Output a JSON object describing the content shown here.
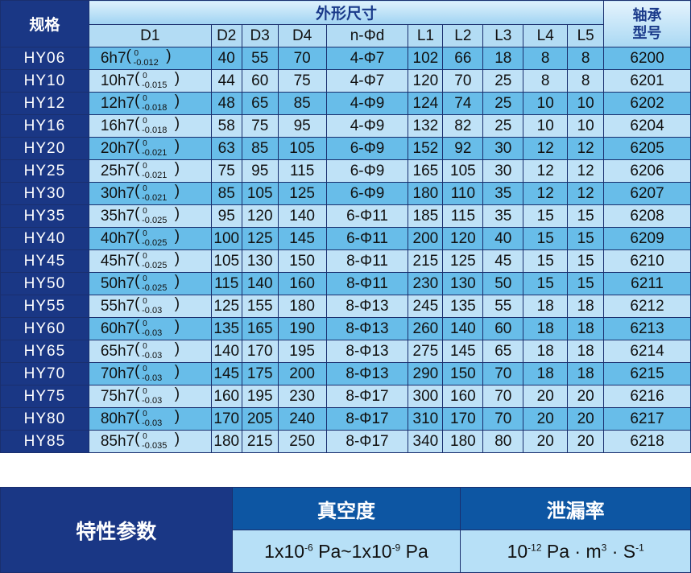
{
  "spec_table": {
    "model_header": "规格",
    "dimensions_header": "外形尺寸",
    "bearing_header_line1": "轴承",
    "bearing_header_line2": "型号",
    "columns": [
      "D1",
      "D2",
      "D3",
      "D4",
      "n-Φd",
      "L1",
      "L2",
      "L3",
      "L4",
      "L5"
    ],
    "rows": [
      {
        "model": "HY06",
        "d1": "6h7",
        "upper": "0",
        "lower": "-0.012",
        "d2": "40",
        "d3": "55",
        "d4": "70",
        "nd": "4-Φ7",
        "l1": "102",
        "l2": "66",
        "l3": "18",
        "l4": "8",
        "l5": "8",
        "bearing": "6200"
      },
      {
        "model": "HY10",
        "d1": "10h7",
        "upper": "0",
        "lower": "-0.015",
        "d2": "44",
        "d3": "60",
        "d4": "75",
        "nd": "4-Φ7",
        "l1": "120",
        "l2": "70",
        "l3": "25",
        "l4": "8",
        "l5": "8",
        "bearing": "6201"
      },
      {
        "model": "HY12",
        "d1": "12h7",
        "upper": "0",
        "lower": "-0.018",
        "d2": "48",
        "d3": "65",
        "d4": "85",
        "nd": "4-Φ9",
        "l1": "124",
        "l2": "74",
        "l3": "25",
        "l4": "10",
        "l5": "10",
        "bearing": "6202"
      },
      {
        "model": "HY16",
        "d1": "16h7",
        "upper": "0",
        "lower": "-0.018",
        "d2": "58",
        "d3": "75",
        "d4": "95",
        "nd": "4-Φ9",
        "l1": "132",
        "l2": "82",
        "l3": "25",
        "l4": "10",
        "l5": "10",
        "bearing": "6204"
      },
      {
        "model": "HY20",
        "d1": "20h7",
        "upper": "0",
        "lower": "-0.021",
        "d2": "63",
        "d3": "85",
        "d4": "105",
        "nd": "6-Φ9",
        "l1": "152",
        "l2": "92",
        "l3": "30",
        "l4": "12",
        "l5": "12",
        "bearing": "6205"
      },
      {
        "model": "HY25",
        "d1": "25h7",
        "upper": "0",
        "lower": "-0.021",
        "d2": "75",
        "d3": "95",
        "d4": "115",
        "nd": "6-Φ9",
        "l1": "165",
        "l2": "105",
        "l3": "30",
        "l4": "12",
        "l5": "12",
        "bearing": "6206"
      },
      {
        "model": "HY30",
        "d1": "30h7",
        "upper": "0",
        "lower": "-0.021",
        "d2": "85",
        "d3": "105",
        "d4": "125",
        "nd": "6-Φ9",
        "l1": "180",
        "l2": "110",
        "l3": "35",
        "l4": "12",
        "l5": "12",
        "bearing": "6207"
      },
      {
        "model": "HY35",
        "d1": "35h7",
        "upper": "0",
        "lower": "-0.025",
        "d2": "95",
        "d3": "120",
        "d4": "140",
        "nd": "6-Φ11",
        "l1": "185",
        "l2": "115",
        "l3": "35",
        "l4": "15",
        "l5": "15",
        "bearing": "6208"
      },
      {
        "model": "HY40",
        "d1": "40h7",
        "upper": "0",
        "lower": "-0.025",
        "d2": "100",
        "d3": "125",
        "d4": "145",
        "nd": "6-Φ11",
        "l1": "200",
        "l2": "120",
        "l3": "40",
        "l4": "15",
        "l5": "15",
        "bearing": "6209"
      },
      {
        "model": "HY45",
        "d1": "45h7",
        "upper": "0",
        "lower": "-0.025",
        "d2": "105",
        "d3": "130",
        "d4": "150",
        "nd": "8-Φ11",
        "l1": "215",
        "l2": "125",
        "l3": "45",
        "l4": "15",
        "l5": "15",
        "bearing": "6210"
      },
      {
        "model": "HY50",
        "d1": "50h7",
        "upper": "0",
        "lower": "-0.025",
        "d2": "115",
        "d3": "140",
        "d4": "160",
        "nd": "8-Φ11",
        "l1": "230",
        "l2": "130",
        "l3": "50",
        "l4": "15",
        "l5": "15",
        "bearing": "6211"
      },
      {
        "model": "HY55",
        "d1": "55h7",
        "upper": "0",
        "lower": "-0.03",
        "d2": "125",
        "d3": "155",
        "d4": "180",
        "nd": "8-Φ13",
        "l1": "245",
        "l2": "135",
        "l3": "55",
        "l4": "18",
        "l5": "18",
        "bearing": "6212"
      },
      {
        "model": "HY60",
        "d1": "60h7",
        "upper": "0",
        "lower": "-0.03",
        "d2": "135",
        "d3": "165",
        "d4": "190",
        "nd": "8-Φ13",
        "l1": "260",
        "l2": "140",
        "l3": "60",
        "l4": "18",
        "l5": "18",
        "bearing": "6213"
      },
      {
        "model": "HY65",
        "d1": "65h7",
        "upper": "0",
        "lower": "-0.03",
        "d2": "140",
        "d3": "170",
        "d4": "195",
        "nd": "8-Φ13",
        "l1": "275",
        "l2": "145",
        "l3": "65",
        "l4": "18",
        "l5": "18",
        "bearing": "6214"
      },
      {
        "model": "HY70",
        "d1": "70h7",
        "upper": "0",
        "lower": "-0.03",
        "d2": "145",
        "d3": "175",
        "d4": "200",
        "nd": "8-Φ13",
        "l1": "290",
        "l2": "150",
        "l3": "70",
        "l4": "18",
        "l5": "18",
        "bearing": "6215"
      },
      {
        "model": "HY75",
        "d1": "75h7",
        "upper": "0",
        "lower": "-0.03",
        "d2": "160",
        "d3": "195",
        "d4": "230",
        "nd": "8-Φ17",
        "l1": "300",
        "l2": "160",
        "l3": "70",
        "l4": "20",
        "l5": "20",
        "bearing": "6216"
      },
      {
        "model": "HY80",
        "d1": "80h7",
        "upper": "0",
        "lower": "-0.03",
        "d2": "170",
        "d3": "205",
        "d4": "240",
        "nd": "8-Φ17",
        "l1": "310",
        "l2": "170",
        "l3": "70",
        "l4": "20",
        "l5": "20",
        "bearing": "6217"
      },
      {
        "model": "HY85",
        "d1": "85h7",
        "upper": "0",
        "lower": "-0.035",
        "d2": "180",
        "d3": "215",
        "d4": "250",
        "nd": "8-Φ17",
        "l1": "340",
        "l2": "180",
        "l3": "80",
        "l4": "20",
        "l5": "20",
        "bearing": "6218"
      }
    ]
  },
  "properties_table": {
    "label": "特性参数",
    "vacuum_header": "真空度",
    "leak_header": "泄漏率",
    "vacuum_value": {
      "a": "1x10",
      "a_exp": "-6",
      "mid": " Pa~1x10",
      "b_exp": "-9",
      "end": " Pa"
    },
    "leak_value": {
      "a": "10",
      "a_exp": "-12",
      "mid": " Pa · m",
      "m_exp": "3",
      "dot": " · S",
      "s_exp": "-1"
    }
  },
  "colors": {
    "navy": "#1a3785",
    "header_blue": "#0d56a3",
    "row_dark": "#68bde9",
    "row_light": "#bfe2f7"
  }
}
